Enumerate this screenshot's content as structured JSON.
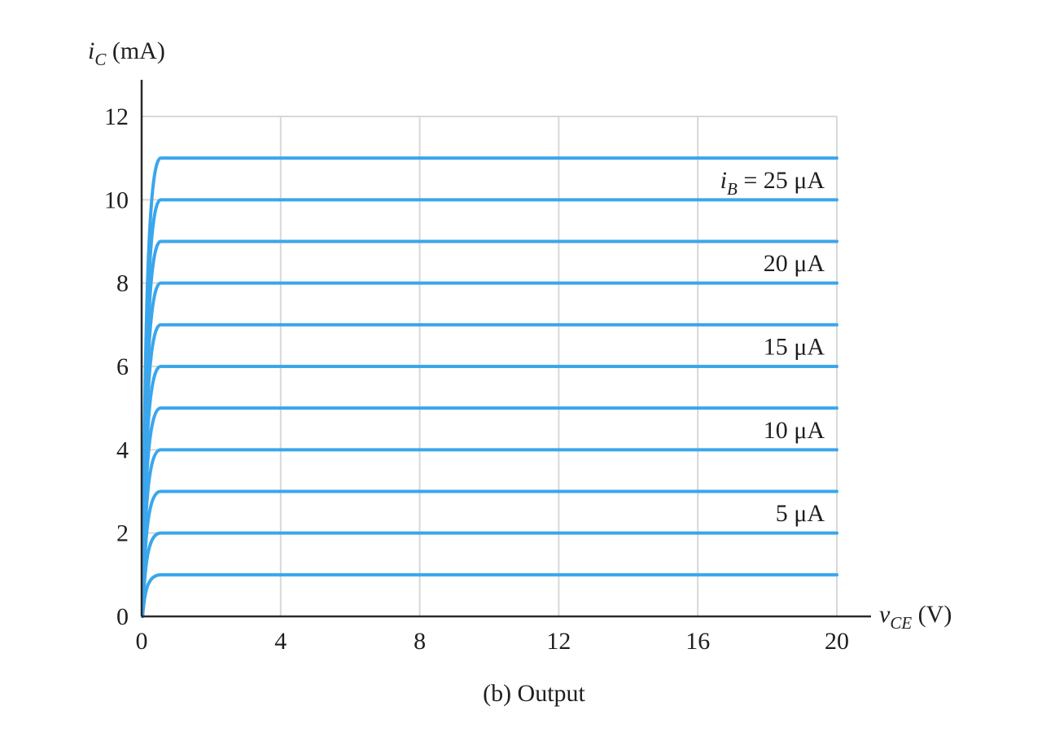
{
  "chart_data": {
    "type": "line",
    "xlabel": {
      "base": "v",
      "sub": "CE",
      "unit": " (V)"
    },
    "ylabel": {
      "base": "i",
      "sub": "C",
      "unit": " (mA)"
    },
    "xlim": [
      0,
      20
    ],
    "ylim": [
      0,
      12
    ],
    "xticks": [
      "0",
      "4",
      "8",
      "12",
      "16",
      "20"
    ],
    "yticks": [
      "0",
      "2",
      "4",
      "6",
      "8",
      "10",
      "12"
    ],
    "xtick_values": [
      0,
      4,
      8,
      12,
      16,
      20
    ],
    "ytick_values": [
      0,
      2,
      4,
      6,
      8,
      10,
      12
    ],
    "grid": true,
    "caption": "(b) Output",
    "curve_color": "#3aa6ec",
    "series_saturation_current_mA": [
      1,
      2,
      3,
      4,
      5,
      6,
      7,
      8,
      9,
      10,
      11
    ],
    "curve_labels": [
      {
        "prefix": "i",
        "sub": "B",
        "text": " = 25 μA",
        "at_mA": 10.5
      },
      {
        "text": "20 μA",
        "at_mA": 8.5
      },
      {
        "text": "15 μA",
        "at_mA": 6.5
      },
      {
        "text": "10 μA",
        "at_mA": 4.5
      },
      {
        "text": "5 μA",
        "at_mA": 2.5
      }
    ]
  }
}
